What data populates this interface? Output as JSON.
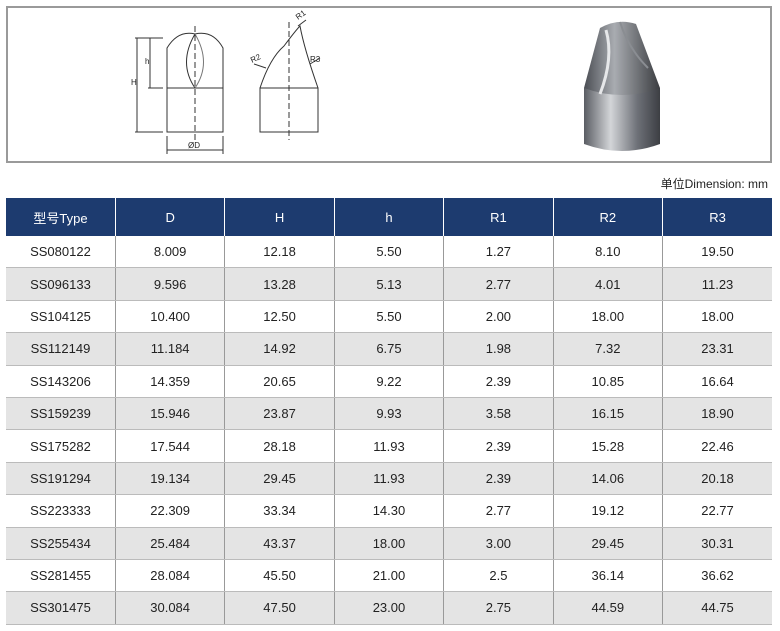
{
  "drawing": {
    "labels": [
      "H",
      "h",
      "ØD",
      "R1",
      "R2",
      "R3"
    ]
  },
  "unit_note": "单位Dimension: mm",
  "table": {
    "header": [
      "型号Type",
      "D",
      "H",
      "h",
      "R1",
      "R2",
      "R3"
    ],
    "rows": [
      [
        "SS080122",
        "8.009",
        "12.18",
        "5.50",
        "1.27",
        "8.10",
        "19.50"
      ],
      [
        "SS096133",
        "9.596",
        "13.28",
        "5.13",
        "2.77",
        "4.01",
        "11.23"
      ],
      [
        "SS104125",
        "10.400",
        "12.50",
        "5.50",
        "2.00",
        "18.00",
        "18.00"
      ],
      [
        "SS112149",
        "11.184",
        "14.92",
        "6.75",
        "1.98",
        "7.32",
        "23.31"
      ],
      [
        "SS143206",
        "14.359",
        "20.65",
        "9.22",
        "2.39",
        "10.85",
        "16.64"
      ],
      [
        "SS159239",
        "15.946",
        "23.87",
        "9.93",
        "3.58",
        "16.15",
        "18.90"
      ],
      [
        "SS175282",
        "17.544",
        "28.18",
        "11.93",
        "2.39",
        "15.28",
        "22.46"
      ],
      [
        "SS191294",
        "19.134",
        "29.45",
        "11.93",
        "2.39",
        "14.06",
        "20.18"
      ],
      [
        "SS223333",
        "22.309",
        "33.34",
        "14.30",
        "2.77",
        "19.12",
        "22.77"
      ],
      [
        "SS255434",
        "25.484",
        "43.37",
        "18.00",
        "3.00",
        "29.45",
        "30.31"
      ],
      [
        "SS281455",
        "28.084",
        "45.50",
        "21.00",
        "2.5",
        "36.14",
        "36.62"
      ],
      [
        "SS301475",
        "30.084",
        "47.50",
        "23.00",
        "2.75",
        "44.59",
        "44.75"
      ]
    ]
  }
}
